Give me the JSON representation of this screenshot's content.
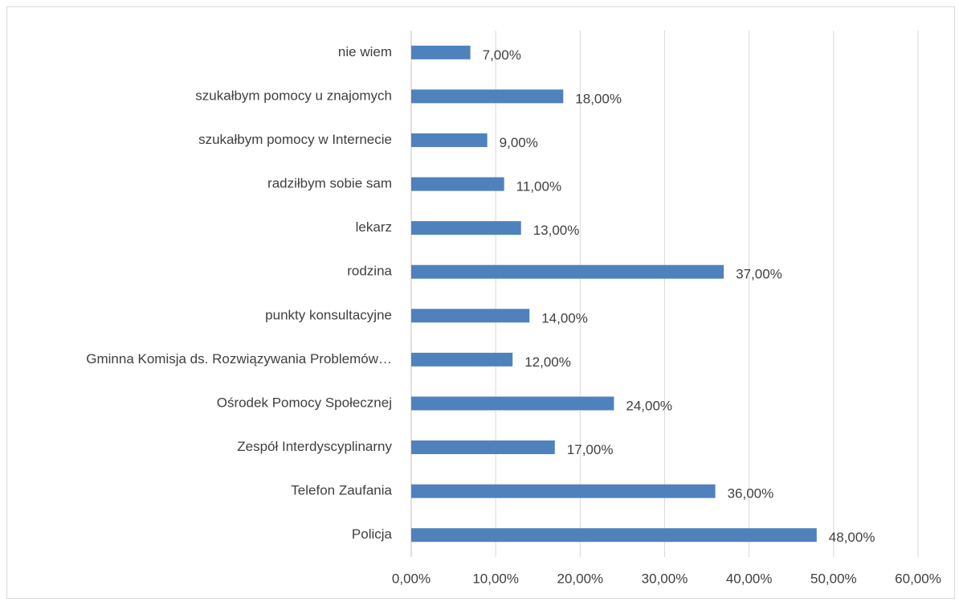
{
  "chart_data": {
    "type": "bar",
    "orientation": "horizontal",
    "categories": [
      "nie wiem",
      "szukałbym pomocy u znajomych",
      "szukałbym pomocy w Internecie",
      "radziłbym sobie sam",
      "lekarz",
      "rodzina",
      "punkty konsultacyjne",
      "Gminna Komisja ds. Rozwiązywania Problemów…",
      "Ośrodek Pomocy Społecznej",
      "Zespół Interdyscyplinarny",
      "Telefon Zaufania",
      "Policja"
    ],
    "values": [
      7,
      18,
      9,
      11,
      13,
      37,
      14,
      12,
      24,
      17,
      36,
      48
    ],
    "value_labels": [
      "7,00%",
      "18,00%",
      "9,00%",
      "11,00%",
      "13,00%",
      "37,00%",
      "14,00%",
      "12,00%",
      "24,00%",
      "17,00%",
      "36,00%",
      "48,00%"
    ],
    "color": "#4f81bd",
    "xlim": [
      0,
      60
    ],
    "xticks": [
      {
        "value": 0,
        "label": "0,00%"
      },
      {
        "value": 10,
        "label": "10,00%"
      },
      {
        "value": 20,
        "label": "20,00%"
      },
      {
        "value": 30,
        "label": "30,00%"
      },
      {
        "value": 40,
        "label": "40,00%"
      },
      {
        "value": 50,
        "label": "50,00%"
      },
      {
        "value": 60,
        "label": "60,00%"
      }
    ],
    "grid": true
  }
}
